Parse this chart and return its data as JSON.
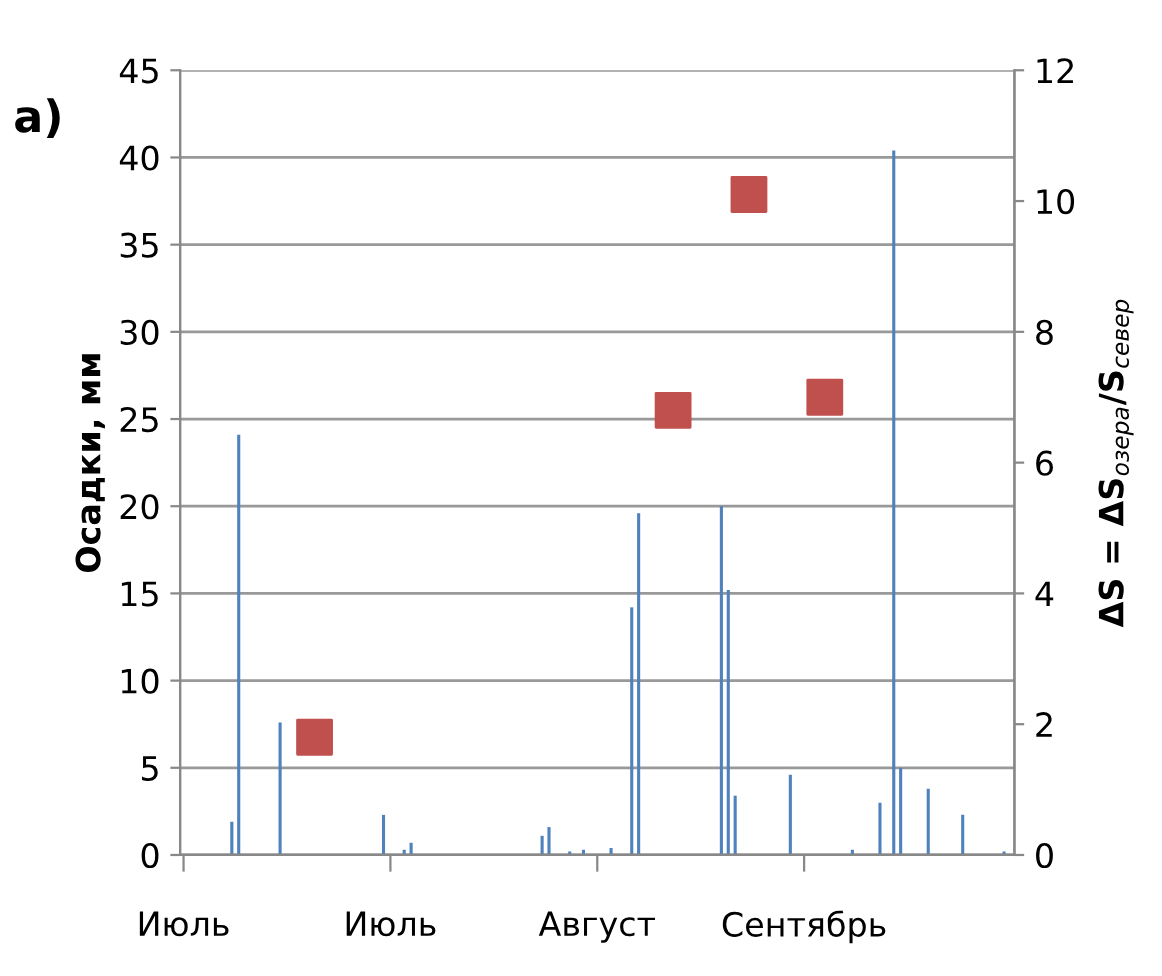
{
  "chart_data": {
    "type": "bar",
    "title": "а)",
    "ylabel": "Осадки, мм",
    "y2label": "ΔS = ΔS$_{озера}$/S$_{север}$",
    "categories": [
      "Июль",
      null,
      null,
      null,
      null,
      null,
      null,
      null,
      null,
      null,
      null,
      null,
      null,
      null,
      null,
      null,
      null,
      null,
      null,
      null,
      null,
      null,
      null,
      null,
      null,
      null,
      null,
      null,
      null,
      null,
      "Июль",
      null,
      null,
      null,
      null,
      null,
      null,
      null,
      null,
      null,
      null,
      null,
      null,
      null,
      null,
      null,
      null,
      null,
      null,
      null,
      null,
      null,
      null,
      null,
      null,
      null,
      null,
      null,
      null,
      null,
      "Август",
      null,
      null,
      null,
      null,
      null,
      null,
      null,
      null,
      null,
      null,
      null,
      null,
      null,
      null,
      null,
      null,
      null,
      null,
      null,
      null,
      null,
      null,
      null,
      null,
      null,
      null,
      null,
      null,
      null,
      "Сентябрь",
      null,
      null,
      null,
      null,
      null,
      null,
      null,
      null,
      null,
      null,
      null,
      null,
      null,
      null,
      null,
      null,
      null,
      null,
      null,
      null,
      null,
      null,
      null,
      null,
      null,
      null,
      null,
      null,
      null,
      null
    ],
    "ylim": [
      0,
      45
    ],
    "yticks": [
      0,
      5,
      10,
      15,
      20,
      25,
      30,
      35,
      40,
      45
    ],
    "y2lim": [
      0,
      12
    ],
    "y2ticks": [
      0,
      2,
      4,
      6,
      8,
      10,
      12
    ],
    "grid": "y",
    "series": [
      {
        "color": "#4f81bd",
        "values": [
          null,
          null,
          null,
          null,
          null,
          null,
          null,
          1.9,
          24.1,
          null,
          null,
          null,
          null,
          null,
          7.6,
          null,
          null,
          null,
          null,
          null,
          null,
          null,
          null,
          null,
          null,
          null,
          null,
          null,
          null,
          2.3,
          null,
          null,
          0.3,
          0.7,
          null,
          null,
          null,
          null,
          null,
          null,
          null,
          null,
          null,
          null,
          null,
          null,
          null,
          null,
          null,
          null,
          null,
          null,
          1.1,
          1.6,
          null,
          null,
          0.2,
          null,
          0.3,
          null,
          null,
          null,
          0.4,
          null,
          null,
          14.2,
          19.6,
          null,
          null,
          null,
          null,
          null,
          null,
          null,
          null,
          null,
          null,
          null,
          20.0,
          15.2,
          3.4,
          null,
          null,
          null,
          null,
          null,
          null,
          null,
          4.6,
          null,
          null,
          null,
          null,
          null,
          null,
          null,
          null,
          0.3,
          null,
          null,
          null,
          3.0,
          null,
          40.4,
          5.0,
          null,
          null,
          null,
          3.8,
          null,
          null,
          null,
          null,
          2.3,
          null,
          null,
          null,
          null,
          null,
          0.2,
          null
        ]
      },
      {
        "type": "scatter",
        "axis": "y2",
        "marker": "square",
        "color": "#c0504d",
        "values": [
          null,
          null,
          null,
          null,
          null,
          null,
          null,
          null,
          null,
          null,
          null,
          null,
          null,
          null,
          null,
          null,
          null,
          null,
          null,
          1.8,
          null,
          null,
          null,
          null,
          null,
          null,
          null,
          null,
          null,
          null,
          null,
          null,
          null,
          null,
          null,
          null,
          null,
          null,
          null,
          null,
          null,
          null,
          null,
          null,
          null,
          null,
          null,
          null,
          null,
          null,
          null,
          null,
          null,
          null,
          null,
          null,
          null,
          null,
          null,
          null,
          null,
          null,
          null,
          null,
          null,
          null,
          null,
          null,
          null,
          null,
          null,
          6.8,
          null,
          null,
          null,
          null,
          null,
          null,
          null,
          null,
          null,
          null,
          10.1,
          null,
          null,
          null,
          null,
          null,
          null,
          null,
          null,
          null,
          null,
          7.0,
          null,
          null,
          null,
          null,
          null,
          null,
          null,
          null,
          null,
          null,
          null,
          null,
          null,
          null,
          null,
          null,
          null,
          null,
          null,
          null,
          null,
          null,
          null,
          null,
          null,
          null,
          null
        ]
      }
    ]
  }
}
